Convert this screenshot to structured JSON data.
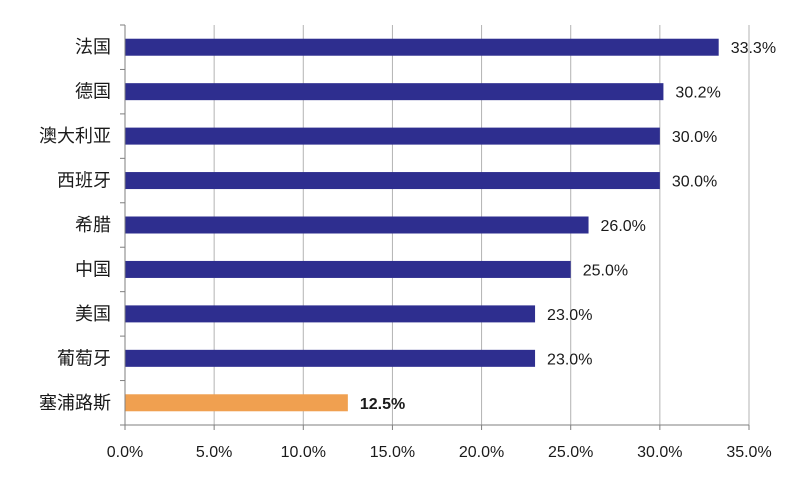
{
  "chart_data": {
    "type": "bar",
    "orientation": "horizontal",
    "categories": [
      "法国",
      "德国",
      "澳大利亚",
      "西班牙",
      "希腊",
      "中国",
      "美国",
      "葡萄牙",
      "塞浦路斯"
    ],
    "values": [
      33.3,
      30.2,
      30.0,
      30.0,
      26.0,
      25.0,
      23.0,
      23.0,
      12.5
    ],
    "data_labels": [
      "33.3%",
      "30.2%",
      "30.0%",
      "30.0%",
      "26.0%",
      "25.0%",
      "23.0%",
      "23.0%",
      "12.5%"
    ],
    "highlighted_category": "塞浦路斯",
    "bar_color": "#2e2e8f",
    "highlight_color": "#f0a050",
    "xlim": [
      0,
      35
    ],
    "x_ticks": [
      "0.0%",
      "5.0%",
      "10.0%",
      "15.0%",
      "20.0%",
      "25.0%",
      "30.0%",
      "35.0%"
    ],
    "title": "",
    "xlabel": "",
    "ylabel": "",
    "grid": "vertical",
    "legend": "none"
  }
}
